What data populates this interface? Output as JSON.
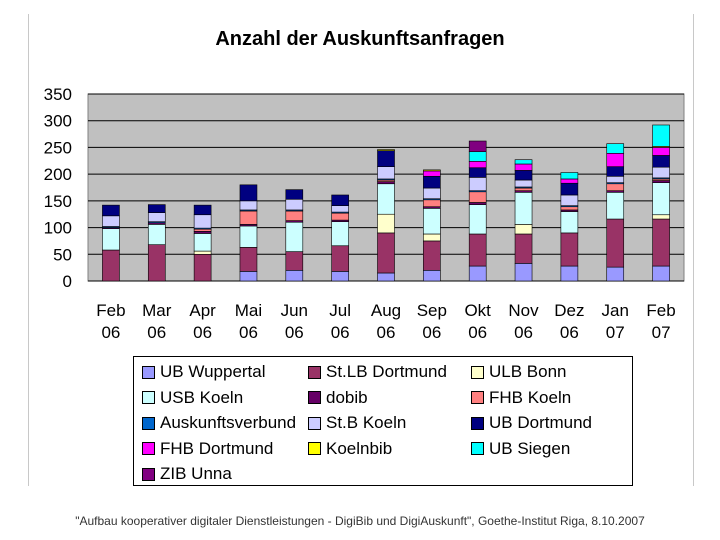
{
  "chart_data": {
    "type": "bar",
    "stacked": true,
    "title": "Anzahl der Auskunftsanfragen",
    "xlabel": "",
    "ylabel": "",
    "ylim": [
      0,
      350
    ],
    "yticks": [
      "350",
      "300",
      "250",
      "200",
      "150",
      "100",
      "50",
      "0"
    ],
    "grid": true,
    "legend_position": "bottom",
    "categories": [
      [
        "Feb",
        "06"
      ],
      [
        "Mar",
        "06"
      ],
      [
        "Apr",
        "06"
      ],
      [
        "Mai",
        "06"
      ],
      [
        "Jun",
        "06"
      ],
      [
        "Jul",
        "06"
      ],
      [
        "Aug",
        "06"
      ],
      [
        "Sep",
        "06"
      ],
      [
        "Okt",
        "06"
      ],
      [
        "Nov",
        "06"
      ],
      [
        "Dez",
        "06"
      ],
      [
        "Jan",
        "07"
      ],
      [
        "Feb",
        "07"
      ]
    ],
    "series": [
      {
        "name": "UB Wuppertal",
        "color": "#9999ff",
        "values": [
          0,
          0,
          0,
          18,
          20,
          18,
          15,
          20,
          28,
          33,
          28,
          26,
          28
        ]
      },
      {
        "name": "St.LB Dortmund",
        "color": "#993366",
        "values": [
          58,
          68,
          50,
          45,
          35,
          48,
          75,
          55,
          60,
          55,
          62,
          90,
          88
        ]
      },
      {
        "name": "ULB Bonn",
        "color": "#ffffcc",
        "values": [
          0,
          0,
          6,
          0,
          0,
          0,
          35,
          13,
          0,
          18,
          0,
          0,
          8
        ]
      },
      {
        "name": "USB Koeln",
        "color": "#ccffff",
        "values": [
          40,
          38,
          33,
          40,
          55,
          45,
          57,
          48,
          55,
          60,
          40,
          50,
          60
        ]
      },
      {
        "name": "dobib",
        "color": "#660066",
        "values": [
          2,
          3,
          4,
          3,
          3,
          3,
          4,
          3,
          4,
          3,
          3,
          3,
          4
        ]
      },
      {
        "name": "FHB Koeln",
        "color": "#ff8080",
        "values": [
          0,
          0,
          4,
          25,
          18,
          13,
          3,
          13,
          20,
          5,
          6,
          13,
          3
        ]
      },
      {
        "name": "Auskunftsverbund",
        "color": "#0066cc",
        "values": [
          2,
          2,
          2,
          2,
          2,
          2,
          2,
          2,
          2,
          2,
          2,
          2,
          2
        ]
      },
      {
        "name": "St.B Koeln",
        "color": "#ccccff",
        "values": [
          20,
          17,
          25,
          17,
          20,
          12,
          23,
          20,
          25,
          13,
          20,
          12,
          20
        ]
      },
      {
        "name": "UB Dortmund",
        "color": "#000080",
        "values": [
          20,
          15,
          18,
          30,
          18,
          20,
          30,
          22,
          18,
          18,
          22,
          18,
          22
        ]
      },
      {
        "name": "FHB Dortmund",
        "color": "#ff00ff",
        "values": [
          0,
          0,
          0,
          0,
          0,
          0,
          0,
          10,
          12,
          12,
          8,
          25,
          15
        ]
      },
      {
        "name": "Koelnbib",
        "color": "#ffff00",
        "values": [
          0,
          0,
          0,
          0,
          0,
          0,
          2,
          2,
          0,
          0,
          0,
          0,
          2
        ]
      },
      {
        "name": "UB Siegen",
        "color": "#00ffff",
        "values": [
          0,
          0,
          0,
          0,
          0,
          0,
          0,
          0,
          18,
          8,
          12,
          18,
          40
        ]
      },
      {
        "name": "ZIB Unna",
        "color": "#800080",
        "values": [
          0,
          0,
          0,
          0,
          0,
          0,
          0,
          0,
          20,
          0,
          0,
          0,
          0
        ]
      }
    ]
  },
  "footer": "\"Aufbau kooperativer digitaler Dienstleistungen - DigiBib und DigiAuskunft\", Goethe-Institut Riga, 8.10.2007"
}
